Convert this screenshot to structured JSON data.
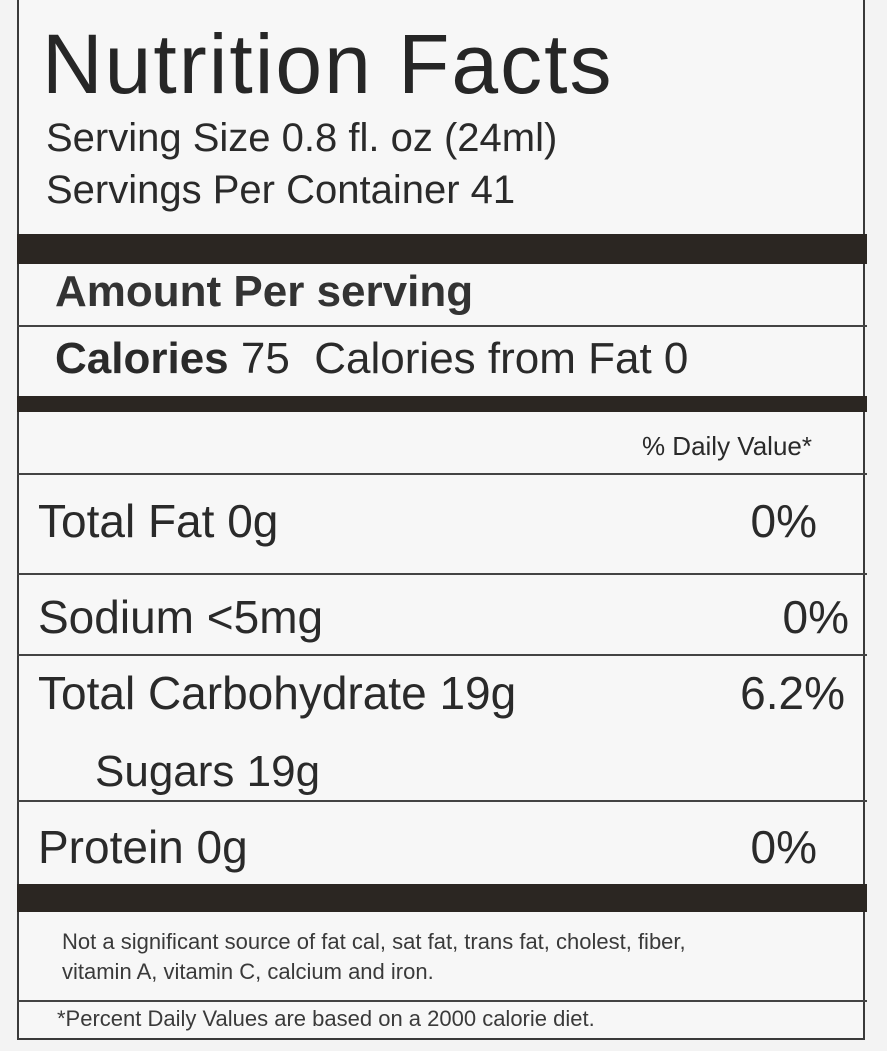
{
  "title": "Nutrition Facts",
  "serving_size": "Serving Size 0.8 fl. oz (24ml)",
  "servings_per_container": "Servings Per Container 41",
  "amount_per_serving": "Amount Per serving",
  "calories": {
    "label": "Calories",
    "value": "75",
    "from_fat": "Calories from Fat 0"
  },
  "daily_value_header": "% Daily Value*",
  "nutrients": [
    {
      "label": "Total Fat 0g",
      "dv": "0%"
    },
    {
      "label": "Sodium <5mg",
      "dv": "0%"
    },
    {
      "label": "Total Carbohydrate 19g",
      "dv": "6.2%"
    },
    {
      "label": "Sugars 19g",
      "dv": ""
    },
    {
      "label": "Protein 0g",
      "dv": "0%"
    }
  ],
  "footnote_line1": "Not a significant source of fat cal, sat fat, trans fat, cholest, fiber,",
  "footnote_line2": "vitamin A, vitamin C, calcium and iron.",
  "percent_note": "*Percent Daily Values are based on a 2000 calorie diet."
}
